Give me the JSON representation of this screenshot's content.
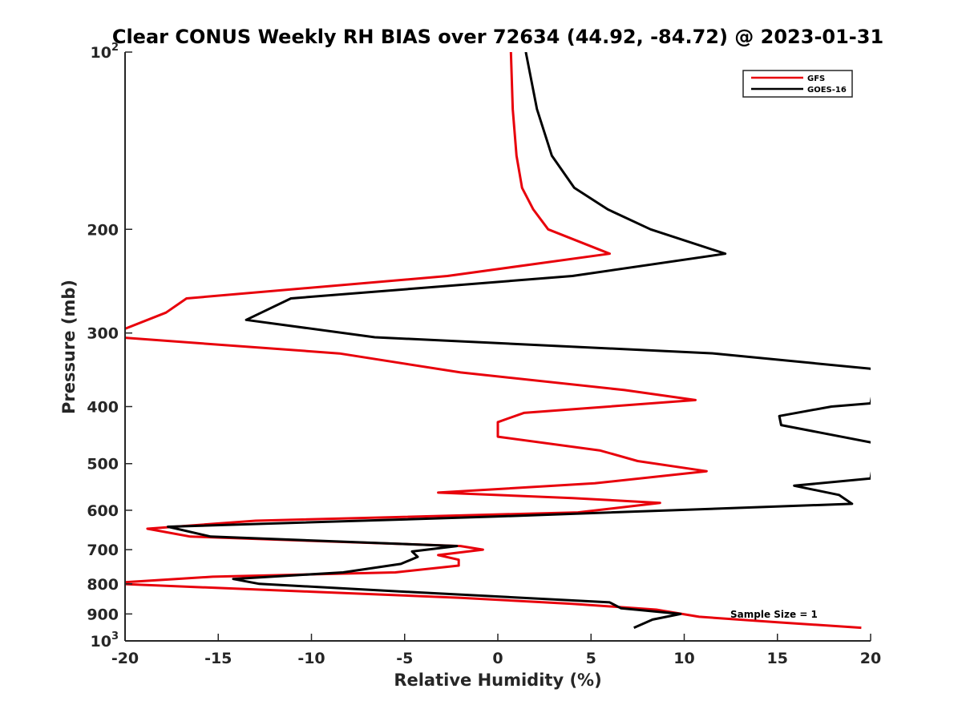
{
  "chart_data": {
    "type": "line",
    "title": "Clear CONUS Weekly RH BIAS over 72634 (44.92, -84.72) @ 2023-01-31",
    "xlabel": "Relative Humidity (%)",
    "ylabel": "Pressure (mb)",
    "xlim": [
      -20,
      20
    ],
    "ylim": [
      100,
      1000
    ],
    "yscale": "log",
    "y_reversed": true,
    "x_ticks": [
      -20,
      -15,
      -10,
      -5,
      0,
      5,
      10,
      15,
      20
    ],
    "y_ticks": [
      {
        "value": 100,
        "label": "10",
        "sup": "2"
      },
      {
        "value": 200,
        "label": "200"
      },
      {
        "value": 300,
        "label": "300"
      },
      {
        "value": 400,
        "label": "400"
      },
      {
        "value": 500,
        "label": "500"
      },
      {
        "value": 600,
        "label": "600"
      },
      {
        "value": 700,
        "label": "700"
      },
      {
        "value": 800,
        "label": "800"
      },
      {
        "value": 900,
        "label": "900"
      },
      {
        "value": 1000,
        "label": "10",
        "sup": "3"
      }
    ],
    "legend_position": "top-right",
    "series": [
      {
        "name": "GFS",
        "color": "#e8000b",
        "points": [
          [
            0.7,
            100
          ],
          [
            0.8,
            125
          ],
          [
            1.0,
            150
          ],
          [
            1.3,
            170
          ],
          [
            1.9,
            185
          ],
          [
            2.7,
            200
          ],
          [
            6.0,
            220
          ],
          [
            -2.7,
            240
          ],
          [
            -16.7,
            262
          ],
          [
            -17.8,
            277
          ],
          [
            -20,
            295
          ],
          [
            -20.4,
            305
          ],
          [
            -8.5,
            325
          ],
          [
            -2.0,
            350
          ],
          [
            6.8,
            375
          ],
          [
            10.6,
            390
          ],
          [
            1.4,
            410
          ],
          [
            0.0,
            425
          ],
          [
            0.0,
            450
          ],
          [
            5.5,
            475
          ],
          [
            7.5,
            495
          ],
          [
            11.2,
            515
          ],
          [
            5.2,
            540
          ],
          [
            -3.2,
            560
          ],
          [
            4.0,
            572
          ],
          [
            8.7,
            583
          ],
          [
            4.3,
            605
          ],
          [
            -13.0,
            625
          ],
          [
            -18.8,
            645
          ],
          [
            -16.5,
            665
          ],
          [
            -2.0,
            690
          ],
          [
            -0.8,
            700
          ],
          [
            -3.2,
            715
          ],
          [
            -2.1,
            728
          ],
          [
            -2.1,
            745
          ],
          [
            -5.5,
            765
          ],
          [
            -15.3,
            778
          ],
          [
            -20,
            795
          ],
          [
            -20.4,
            800
          ],
          [
            -10.0,
            825
          ],
          [
            -2.0,
            845
          ],
          [
            4.0,
            865
          ],
          [
            8.5,
            885
          ],
          [
            10.8,
            910
          ],
          [
            15.0,
            930
          ],
          [
            19.5,
            950
          ]
        ]
      },
      {
        "name": "GOES-16",
        "color": "#000000",
        "points": [
          [
            1.5,
            100
          ],
          [
            2.1,
            125
          ],
          [
            2.9,
            150
          ],
          [
            4.1,
            170
          ],
          [
            5.9,
            185
          ],
          [
            8.2,
            200
          ],
          [
            12.2,
            220
          ],
          [
            4.0,
            240
          ],
          [
            -11.1,
            262
          ],
          [
            -13.5,
            285
          ],
          [
            -6.6,
            305
          ],
          [
            11.6,
            325
          ],
          [
            20.0,
            345
          ],
          [
            20.3,
            350
          ],
          [
            20.0,
            395
          ],
          [
            17.9,
            400
          ],
          [
            15.1,
            415
          ],
          [
            15.2,
            430
          ],
          [
            20.0,
            460
          ],
          [
            20.3,
            465
          ],
          [
            20.0,
            530
          ],
          [
            15.9,
            545
          ],
          [
            18.3,
            565
          ],
          [
            19.0,
            585
          ],
          [
            -0.1,
            615
          ],
          [
            -17.7,
            640
          ],
          [
            -15.4,
            665
          ],
          [
            -2.2,
            690
          ],
          [
            -4.6,
            705
          ],
          [
            -4.3,
            720
          ],
          [
            -5.2,
            740
          ],
          [
            -8.3,
            765
          ],
          [
            -14.2,
            785
          ],
          [
            -12.8,
            800
          ],
          [
            -5.0,
            825
          ],
          [
            6.0,
            860
          ],
          [
            6.6,
            880
          ],
          [
            9.8,
            900
          ],
          [
            8.3,
            920
          ],
          [
            7.8,
            935
          ],
          [
            7.3,
            950
          ]
        ]
      }
    ],
    "annotations": [
      "Sample Size = 1"
    ]
  }
}
